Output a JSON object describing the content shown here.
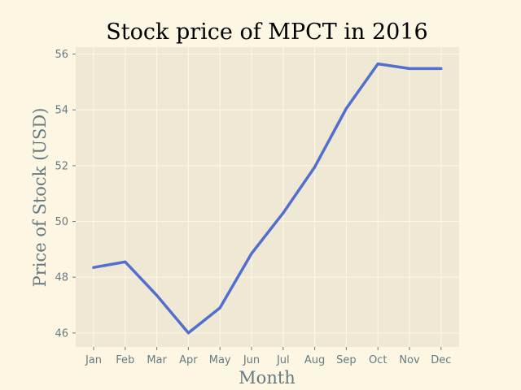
{
  "chart_data": {
    "type": "line",
    "title": "Stock price of MPCT in 2016",
    "xlabel": "Month",
    "ylabel": "Price of Stock (USD)",
    "categories": [
      "Jan",
      "Feb",
      "Mar",
      "Apr",
      "May",
      "Jun",
      "Jul",
      "Aug",
      "Sep",
      "Oct",
      "Nov",
      "Dec"
    ],
    "series": [
      {
        "values": [
          48.35,
          48.55,
          47.35,
          46.0,
          46.9,
          48.85,
          50.3,
          51.95,
          54.05,
          55.65,
          55.48,
          55.48
        ]
      }
    ],
    "ylim": [
      45.5,
      56.25
    ],
    "yticks": [
      46,
      48,
      50,
      52,
      54,
      56
    ],
    "grid": true,
    "colors": {
      "page_background": "#fdf6e3",
      "plot_background": "#eee8d5",
      "grid": "#fdf6e3",
      "line": "#536fcd",
      "text": "#657b83"
    }
  }
}
